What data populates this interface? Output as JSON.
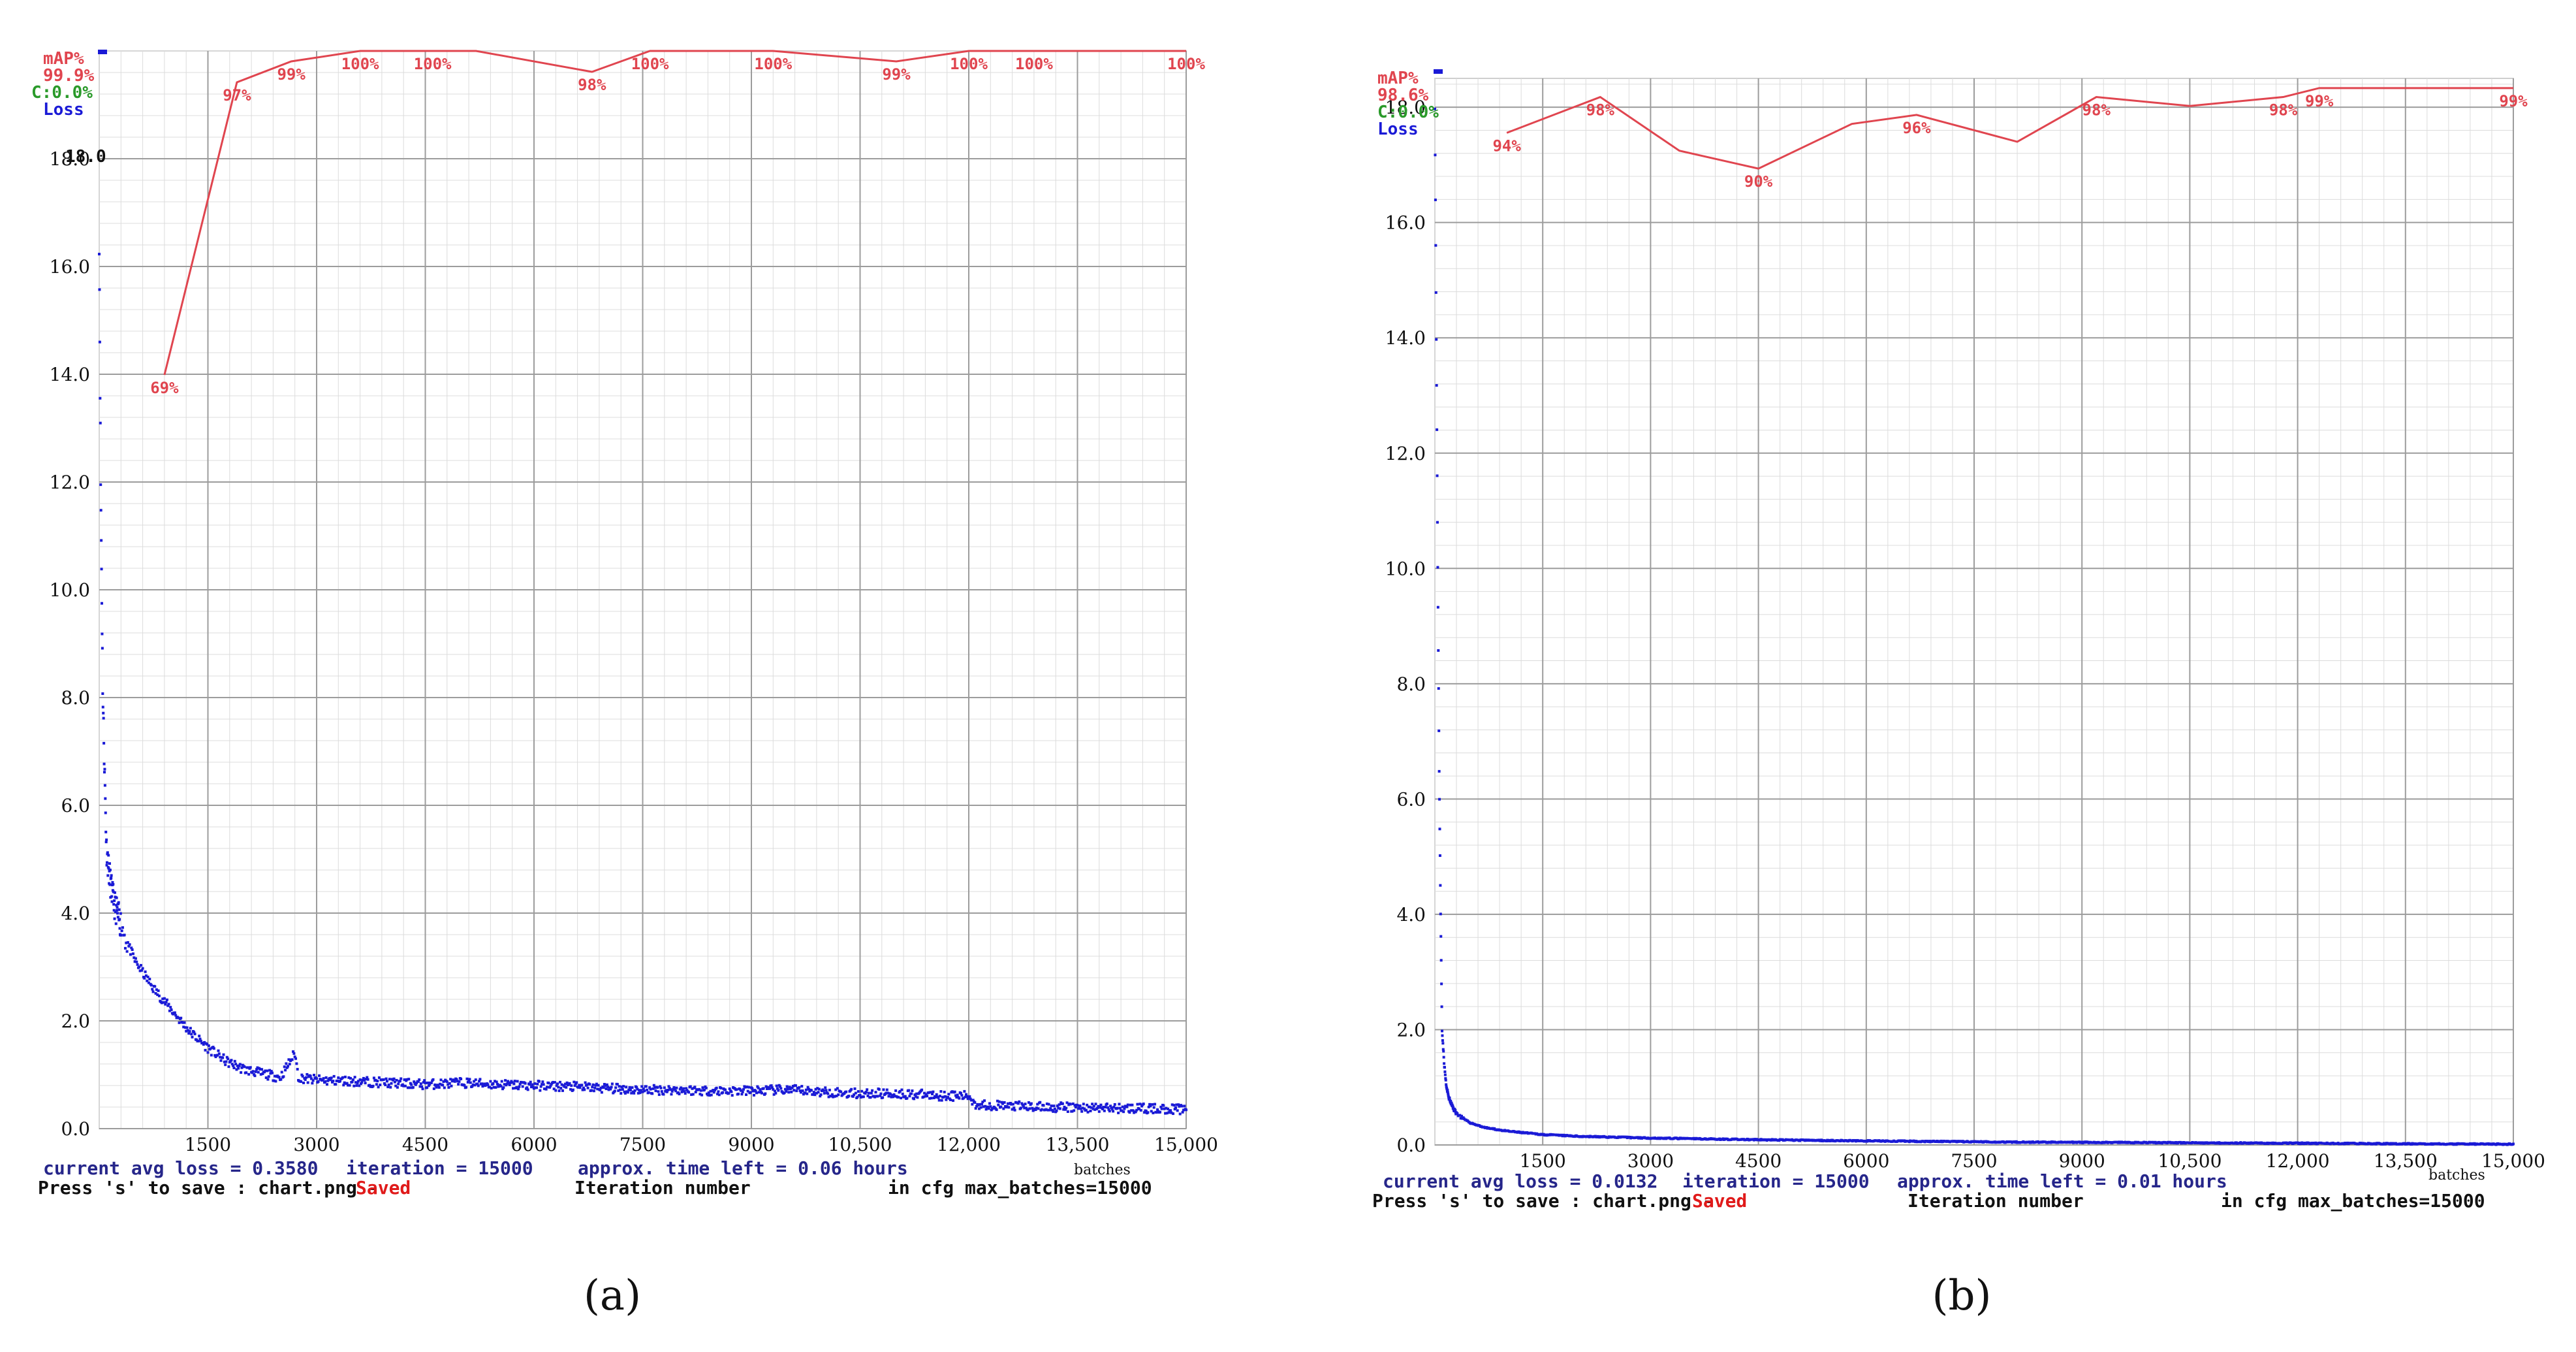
{
  "colors": {
    "map": "#e0454f",
    "loss": "#1a1ad6",
    "grid_major": "#9c9c9c",
    "grid_minor": "#dcdcdc",
    "axis_text": "#111111",
    "status_blue": "#26268a",
    "saved_red": "#e01a1a",
    "cval_green": "#2a9a2a"
  },
  "chart_data": [
    {
      "type": "line",
      "panel_label": "(a)",
      "x_ticks": [
        "1500",
        "3000",
        "4500",
        "6000",
        "7500",
        "9000",
        "10,500",
        "12,000",
        "13,500",
        "15,000"
      ],
      "y_ticks": [
        "0.0",
        "2.0",
        "4.0",
        "6.0",
        "8.0",
        "10.0",
        "12.0",
        "14.0",
        "16.0",
        "18.0"
      ],
      "ylim": [
        0,
        20
      ],
      "xlim": [
        0,
        15000
      ],
      "y_extra_label": "18.0",
      "xunit_label": "batches",
      "legend": {
        "map_title": "mAP%",
        "map_value": "99.9%",
        "c_value": "C:0.0%",
        "loss": "Loss"
      },
      "map_series": {
        "x": [
          900,
          1900,
          2650,
          3600,
          4600,
          5200,
          6800,
          7600,
          9300,
          11000,
          12000,
          12900,
          15000
        ],
        "values": [
          69,
          97,
          99,
          100,
          100,
          100,
          98,
          100,
          100,
          99,
          100,
          100,
          100
        ],
        "labels": [
          "69%",
          "97%",
          "99%",
          "100%",
          "100%",
          "",
          "98%",
          "100%",
          "100%",
          "99%",
          "100%",
          "100%",
          "100%"
        ]
      },
      "loss_series": {
        "x": [
          0,
          20,
          50,
          100,
          150,
          200,
          300,
          400,
          500,
          750,
          1000,
          1250,
          1500,
          1750,
          2000,
          2500,
          2700,
          2750,
          3000,
          3500,
          4000,
          4500,
          5000,
          5500,
          6000,
          6500,
          7000,
          7500,
          8000,
          8500,
          9000,
          9500,
          10000,
          10500,
          11000,
          11500,
          12000,
          12100,
          12500,
          13000,
          14000,
          15000
        ],
        "values": [
          16.5,
          12.0,
          8.0,
          5.2,
          4.6,
          4.2,
          3.8,
          3.4,
          3.1,
          2.6,
          2.2,
          1.8,
          1.5,
          1.25,
          1.1,
          0.95,
          1.4,
          0.95,
          0.9,
          0.88,
          0.85,
          0.82,
          0.85,
          0.82,
          0.8,
          0.78,
          0.75,
          0.72,
          0.72,
          0.7,
          0.7,
          0.72,
          0.68,
          0.65,
          0.65,
          0.62,
          0.6,
          0.45,
          0.42,
          0.4,
          0.38,
          0.36
        ],
        "noise": 0.09
      },
      "status": {
        "avg_loss": "current avg loss = 0.3580",
        "iteration": "iteration = 15000",
        "time_left": "approx. time left = 0.06 hours",
        "save_hint": "Press 's' to save : chart.png -",
        "saved": "Saved",
        "iteration_label": "Iteration number",
        "cfg": "in cfg max_batches=15000"
      }
    },
    {
      "type": "line",
      "panel_label": "(b)",
      "x_ticks": [
        "1500",
        "3000",
        "4500",
        "6000",
        "7500",
        "9000",
        "10,500",
        "12,000",
        "13,500",
        "15,000"
      ],
      "y_ticks": [
        "0.0",
        "2.0",
        "4.0",
        "6.0",
        "8.0",
        "10.0",
        "12.0",
        "14.0",
        "16.0",
        "18.0"
      ],
      "ylim": [
        0,
        18.5
      ],
      "xlim": [
        0,
        15000
      ],
      "y_extra_label": "",
      "xunit_label": "batches",
      "legend": {
        "map_title": "mAP%",
        "map_value": "98.6%",
        "c_value": "C:0.0%",
        "loss": "Loss"
      },
      "map_series": {
        "x": [
          1000,
          2300,
          3400,
          4500,
          5800,
          6700,
          8100,
          9200,
          10500,
          11800,
          12300,
          15000
        ],
        "values": [
          94,
          98,
          92,
          90,
          95,
          96,
          93,
          98,
          97,
          98,
          99,
          99
        ],
        "labels": [
          "94%",
          "98%",
          "",
          "90%",
          "",
          "96%",
          "",
          "98%",
          "",
          "98%",
          "99%",
          "99%"
        ]
      },
      "loss_series": {
        "x": [
          0,
          20,
          40,
          60,
          80,
          100,
          130,
          160,
          200,
          250,
          300,
          400,
          500,
          700,
          1000,
          1500,
          2000,
          3000,
          4500,
          6000,
          8000,
          10000,
          12000,
          13500,
          15000
        ],
        "values": [
          18.0,
          14.0,
          10.0,
          6.5,
          4.0,
          2.0,
          1.4,
          1.0,
          0.8,
          0.65,
          0.55,
          0.45,
          0.38,
          0.3,
          0.24,
          0.18,
          0.15,
          0.12,
          0.09,
          0.07,
          0.05,
          0.04,
          0.03,
          0.02,
          0.0132
        ],
        "noise": 0.01
      },
      "status": {
        "avg_loss": "current avg loss = 0.0132",
        "iteration": "iteration = 15000",
        "time_left": "approx. time left = 0.01 hours",
        "save_hint": "Press 's' to save : chart.png -",
        "saved": "Saved",
        "iteration_label": "Iteration number",
        "cfg": "in cfg max_batches=15000"
      }
    }
  ]
}
